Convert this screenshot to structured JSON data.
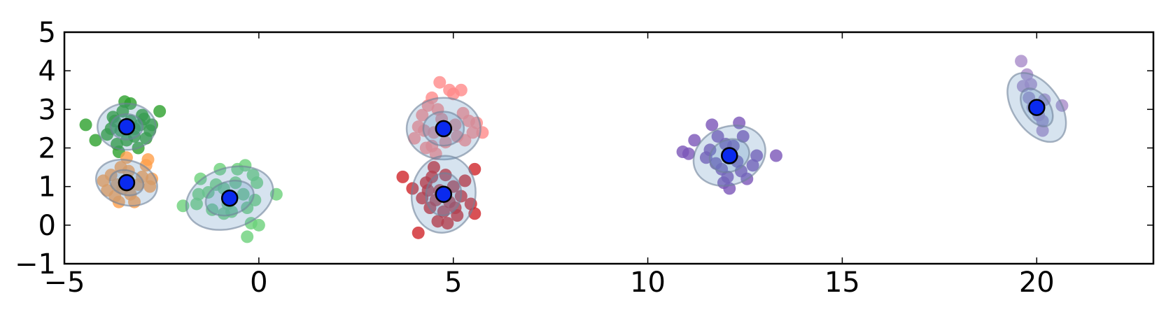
{
  "chart_data": {
    "type": "scatter",
    "title": "",
    "xlabel": "",
    "ylabel": "",
    "xlim": [
      -5,
      23
    ],
    "ylim": [
      -1,
      5
    ],
    "xticks": [
      -5,
      0,
      5,
      10,
      15,
      20
    ],
    "yticks": [
      -1,
      0,
      1,
      2,
      3,
      4,
      5
    ],
    "xtick_labels": [
      "−5",
      "0",
      "5",
      "10",
      "15",
      "20"
    ],
    "ytick_labels": [
      "−1",
      "0",
      "1",
      "2",
      "3",
      "4",
      "5"
    ],
    "grid": false,
    "legend": false,
    "ellipse_color": "#5a8fbf",
    "mean_color": "#0a2aee",
    "clusters": [
      {
        "color": "#2ca02c",
        "mean": [
          -3.4,
          2.55
        ],
        "ellipse": {
          "rx": 0.75,
          "ry": 0.6,
          "angle": 0
        },
        "points": [
          [
            -4.45,
            2.6
          ],
          [
            -4.2,
            2.2
          ],
          [
            -3.9,
            2.35
          ],
          [
            -3.7,
            2.7
          ],
          [
            -3.55,
            2.45
          ],
          [
            -3.45,
            3.2
          ],
          [
            -3.3,
            3.15
          ],
          [
            -3.2,
            2.3
          ],
          [
            -3.1,
            2.0
          ],
          [
            -3.0,
            2.85
          ],
          [
            -2.9,
            2.25
          ],
          [
            -2.8,
            2.45
          ],
          [
            -2.75,
            2.6
          ],
          [
            -2.55,
            2.95
          ],
          [
            -3.8,
            2.5
          ],
          [
            -3.6,
            1.9
          ],
          [
            -3.65,
            2.1
          ],
          [
            -3.5,
            2.95
          ],
          [
            -3.3,
            2.7
          ],
          [
            -3.2,
            2.5
          ],
          [
            -3.05,
            2.6
          ],
          [
            -2.95,
            2.75
          ],
          [
            -3.75,
            2.8
          ],
          [
            -3.4,
            2.2
          ]
        ]
      },
      {
        "color": "#ff9f4a",
        "mean": [
          -3.4,
          1.1
        ],
        "ellipse": {
          "rx": 0.8,
          "ry": 0.58,
          "angle": -15
        },
        "points": [
          [
            -4.0,
            1.15
          ],
          [
            -3.9,
            0.9
          ],
          [
            -3.8,
            1.3
          ],
          [
            -3.7,
            0.75
          ],
          [
            -3.6,
            0.6
          ],
          [
            -3.55,
            1.5
          ],
          [
            -3.4,
            1.75
          ],
          [
            -3.3,
            0.8
          ],
          [
            -3.2,
            0.6
          ],
          [
            -3.0,
            1.25
          ],
          [
            -2.9,
            1.55
          ],
          [
            -2.85,
            1.7
          ],
          [
            -2.8,
            1.0
          ],
          [
            -2.75,
            1.2
          ],
          [
            -3.5,
            0.95
          ],
          [
            -3.35,
            1.4
          ],
          [
            -3.1,
            1.05
          ],
          [
            -3.65,
            1.05
          ]
        ]
      },
      {
        "color": "#6cd17a",
        "mean": [
          -0.75,
          0.7
        ],
        "ellipse": {
          "rx": 1.15,
          "ry": 0.78,
          "angle": 18
        },
        "points": [
          [
            -1.95,
            0.5
          ],
          [
            -1.6,
            0.55
          ],
          [
            -1.55,
            0.8
          ],
          [
            -1.5,
            1.2
          ],
          [
            -1.3,
            0.85
          ],
          [
            -1.2,
            0.4
          ],
          [
            -1.0,
            1.45
          ],
          [
            -0.9,
            0.95
          ],
          [
            -0.8,
            0.55
          ],
          [
            -0.7,
            0.35
          ],
          [
            -0.6,
            1.1
          ],
          [
            -0.55,
            1.45
          ],
          [
            -0.3,
            0.45
          ],
          [
            -0.2,
            0.05
          ],
          [
            -0.15,
            1.3
          ],
          [
            -0.1,
            0.65
          ],
          [
            -0.05,
            1.1
          ],
          [
            0.0,
            0.0
          ],
          [
            0.45,
            0.8
          ],
          [
            -0.35,
            1.55
          ],
          [
            -0.3,
            -0.3
          ],
          [
            -1.1,
            1.05
          ],
          [
            -0.9,
            0.3
          ],
          [
            -0.4,
            0.8
          ]
        ]
      },
      {
        "color": "#ff8a8a",
        "mean": [
          4.75,
          2.5
        ],
        "ellipse": {
          "rx": 0.95,
          "ry": 0.8,
          "angle": 0
        },
        "points": [
          [
            4.0,
            2.25
          ],
          [
            4.1,
            2.55
          ],
          [
            4.2,
            2.85
          ],
          [
            4.3,
            2.0
          ],
          [
            4.35,
            3.1
          ],
          [
            4.45,
            3.3
          ],
          [
            4.5,
            2.4
          ],
          [
            4.55,
            1.85
          ],
          [
            4.65,
            3.7
          ],
          [
            4.7,
            2.75
          ],
          [
            4.8,
            2.15
          ],
          [
            4.9,
            3.5
          ],
          [
            5.0,
            3.4
          ],
          [
            5.05,
            2.6
          ],
          [
            5.1,
            2.3
          ],
          [
            5.25,
            2.9
          ],
          [
            5.4,
            2.7
          ],
          [
            5.5,
            2.4
          ],
          [
            5.6,
            2.65
          ],
          [
            5.75,
            2.4
          ],
          [
            5.2,
            3.5
          ],
          [
            4.25,
            2.45
          ],
          [
            4.6,
            3.0
          ],
          [
            5.3,
            2.2
          ],
          [
            4.45,
            2.05
          ]
        ]
      },
      {
        "color": "#d0252a",
        "mean": [
          4.75,
          0.8
        ],
        "ellipse": {
          "rx": 0.82,
          "ry": 1.0,
          "angle": -8
        },
        "points": [
          [
            3.7,
            1.25
          ],
          [
            3.95,
            0.95
          ],
          [
            4.1,
            -0.2
          ],
          [
            4.2,
            0.7
          ],
          [
            4.3,
            1.1
          ],
          [
            4.4,
            0.45
          ],
          [
            4.5,
            1.5
          ],
          [
            4.6,
            0.1
          ],
          [
            4.65,
            0.9
          ],
          [
            4.75,
            0.35
          ],
          [
            4.8,
            1.3
          ],
          [
            4.9,
            0.6
          ],
          [
            5.0,
            1.0
          ],
          [
            5.1,
            0.25
          ],
          [
            5.2,
            0.75
          ],
          [
            5.3,
            1.15
          ],
          [
            5.45,
            0.55
          ],
          [
            5.55,
            1.45
          ],
          [
            5.55,
            0.3
          ],
          [
            4.35,
            0.9
          ],
          [
            4.55,
            0.65
          ],
          [
            5.05,
            0.45
          ],
          [
            4.85,
            0.05
          ],
          [
            4.45,
            1.25
          ]
        ]
      },
      {
        "color": "#7a55b8",
        "mean": [
          12.1,
          1.8
        ],
        "ellipse": {
          "rx": 0.95,
          "ry": 0.75,
          "angle": 22
        },
        "points": [
          [
            10.9,
            1.9
          ],
          [
            11.05,
            1.85
          ],
          [
            11.2,
            2.2
          ],
          [
            11.5,
            1.75
          ],
          [
            11.6,
            1.95
          ],
          [
            11.65,
            2.6
          ],
          [
            11.8,
            2.3
          ],
          [
            11.9,
            1.45
          ],
          [
            11.95,
            1.1
          ],
          [
            12.05,
            1.25
          ],
          [
            12.1,
            0.95
          ],
          [
            12.2,
            2.05
          ],
          [
            12.3,
            1.65
          ],
          [
            12.35,
            2.65
          ],
          [
            12.45,
            2.3
          ],
          [
            12.55,
            1.2
          ],
          [
            12.7,
            1.55
          ],
          [
            12.8,
            1.8
          ],
          [
            13.3,
            1.8
          ],
          [
            11.75,
            1.6
          ],
          [
            12.0,
            2.1
          ],
          [
            12.4,
            1.4
          ]
        ]
      },
      {
        "color": "#a78bc9",
        "mean": [
          20.0,
          3.05
        ],
        "ellipse": {
          "rx": 1.0,
          "ry": 0.6,
          "angle": -55
        },
        "points": [
          [
            19.6,
            4.25
          ],
          [
            19.65,
            3.6
          ],
          [
            19.75,
            3.9
          ],
          [
            19.8,
            3.3
          ],
          [
            19.9,
            3.05
          ],
          [
            20.05,
            2.85
          ],
          [
            20.15,
            2.7
          ],
          [
            20.2,
            3.25
          ],
          [
            20.15,
            2.45
          ],
          [
            20.65,
            3.1
          ],
          [
            19.85,
            3.65
          ]
        ]
      }
    ]
  }
}
